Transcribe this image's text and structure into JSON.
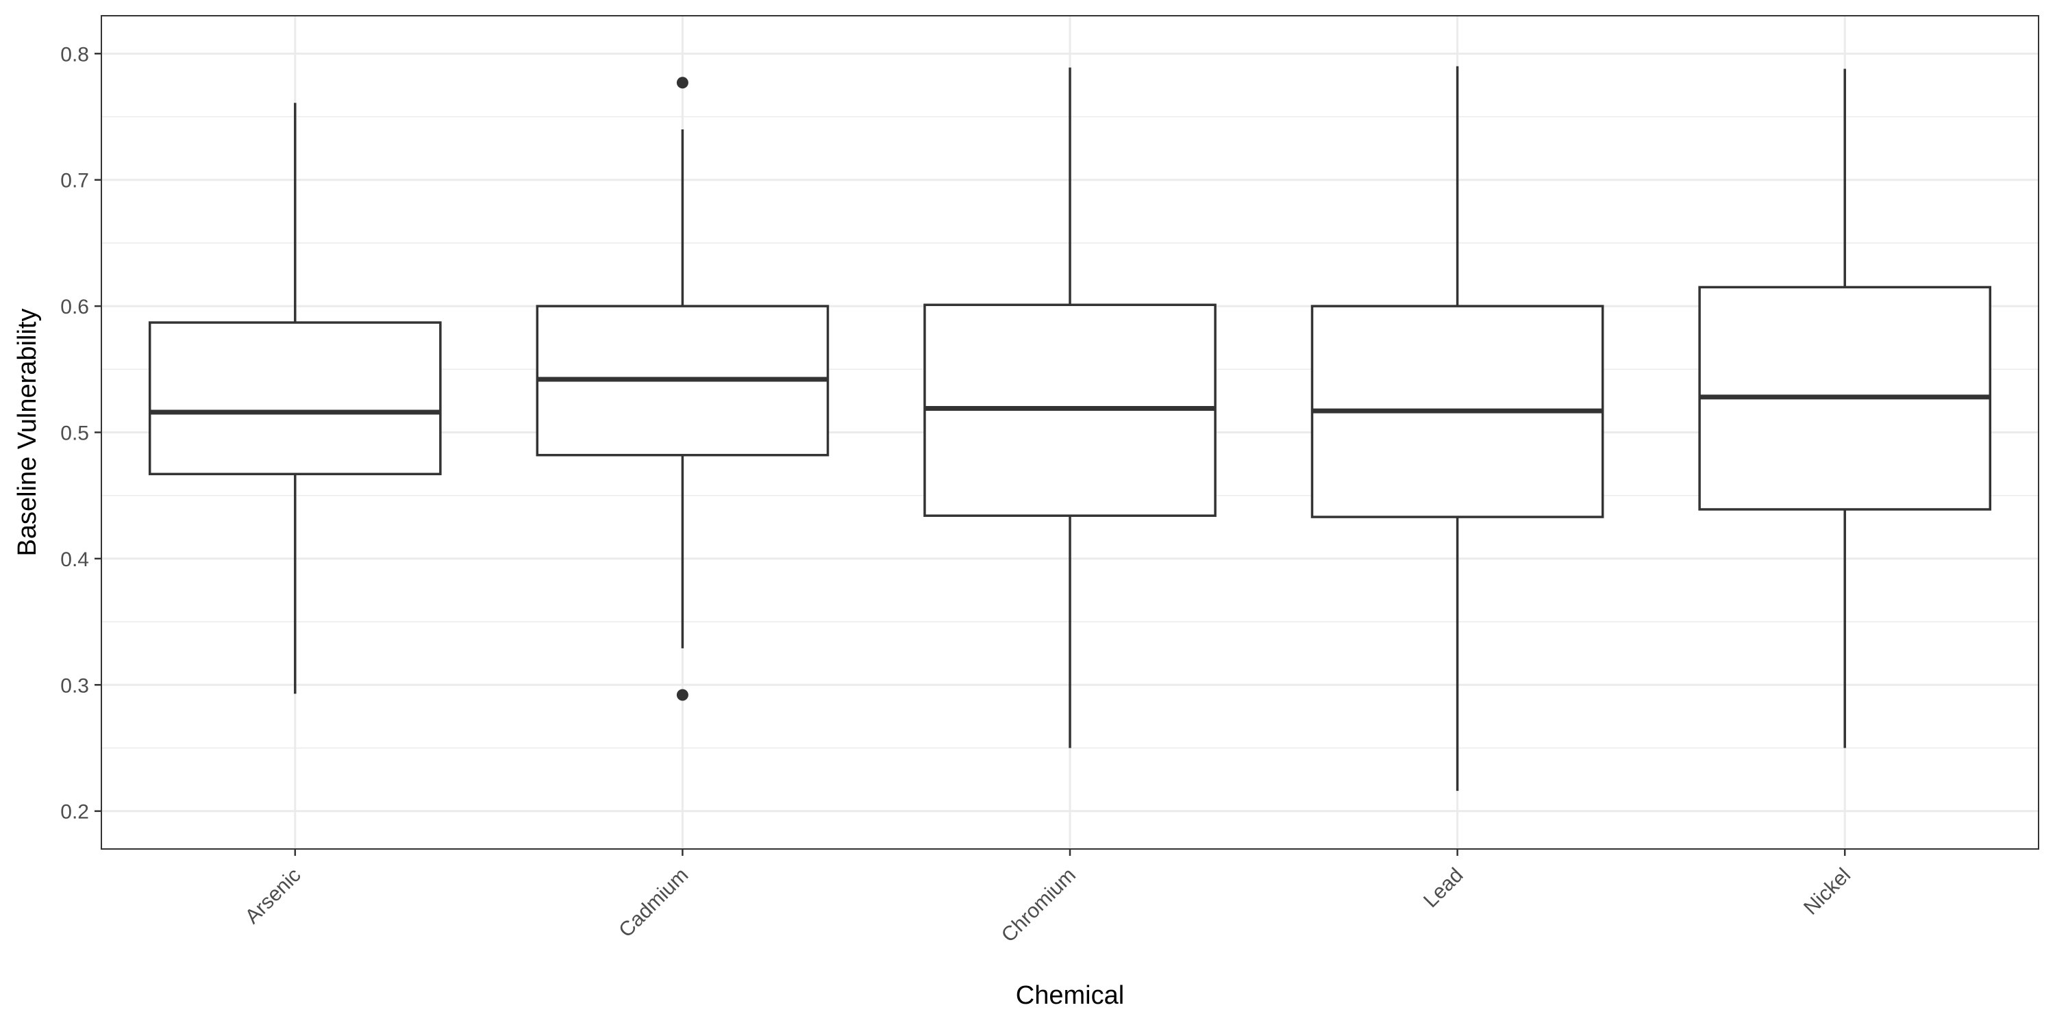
{
  "chart_data": {
    "type": "boxplot",
    "title": "",
    "xlabel": "Chemical",
    "ylabel": "Baseline Vulnerability",
    "ylim": [
      0.17,
      0.83
    ],
    "y_ticks": [
      "0.2",
      "0.3",
      "0.4",
      "0.5",
      "0.6",
      "0.7",
      "0.8"
    ],
    "y_minor_ticks": [
      0.25,
      0.35,
      0.45,
      0.55,
      0.65,
      0.75
    ],
    "grid": true,
    "legend": "none",
    "colors": {
      "box_stroke": "#333333",
      "box_fill": "#ffffff",
      "grid": "#ebebeb",
      "panel_border": "#333333"
    },
    "categories": [
      "Arsenic",
      "Cadmium",
      "Chromium",
      "Lead",
      "Nickel"
    ],
    "boxes": [
      {
        "category": "Arsenic",
        "whisker_low": 0.293,
        "q1": 0.467,
        "median": 0.516,
        "q3": 0.587,
        "whisker_high": 0.761,
        "outliers": []
      },
      {
        "category": "Cadmium",
        "whisker_low": 0.329,
        "q1": 0.482,
        "median": 0.542,
        "q3": 0.6,
        "whisker_high": 0.74,
        "outliers": [
          0.292,
          0.777
        ]
      },
      {
        "category": "Chromium",
        "whisker_low": 0.25,
        "q1": 0.434,
        "median": 0.519,
        "q3": 0.601,
        "whisker_high": 0.789,
        "outliers": []
      },
      {
        "category": "Lead",
        "whisker_low": 0.216,
        "q1": 0.433,
        "median": 0.517,
        "q3": 0.6,
        "whisker_high": 0.79,
        "outliers": []
      },
      {
        "category": "Nickel",
        "whisker_low": 0.25,
        "q1": 0.439,
        "median": 0.528,
        "q3": 0.615,
        "whisker_high": 0.788,
        "outliers": []
      }
    ]
  }
}
